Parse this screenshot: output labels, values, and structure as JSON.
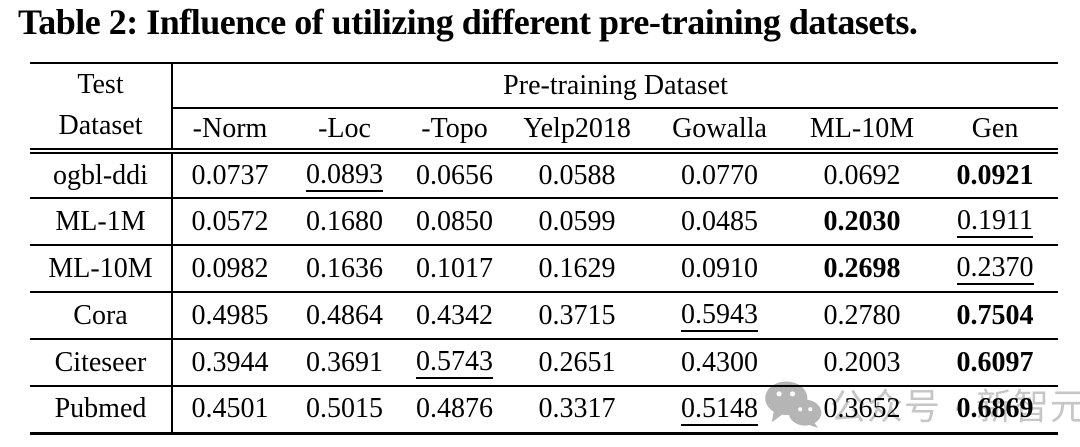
{
  "title": "Table 2: Influence of utilizing different pre-training datasets.",
  "table": {
    "row_header_line1": "Test",
    "row_header_line2": "Dataset",
    "group_header": "Pre-training Dataset",
    "columns": [
      "-Norm",
      "-Loc",
      "-Topo",
      "Yelp2018",
      "Gowalla",
      "ML-10M",
      "Gen"
    ],
    "rows": [
      {
        "label": "ogbl-ddi",
        "values": [
          "0.0737",
          "0.0893",
          "0.0656",
          "0.0588",
          "0.0770",
          "0.0692",
          "0.0921"
        ],
        "bold_col": 6,
        "underline_col": 1
      },
      {
        "label": "ML-1M",
        "values": [
          "0.0572",
          "0.1680",
          "0.0850",
          "0.0599",
          "0.0485",
          "0.2030",
          "0.1911"
        ],
        "bold_col": 5,
        "underline_col": 6
      },
      {
        "label": "ML-10M",
        "values": [
          "0.0982",
          "0.1636",
          "0.1017",
          "0.1629",
          "0.0910",
          "0.2698",
          "0.2370"
        ],
        "bold_col": 5,
        "underline_col": 6
      },
      {
        "label": "Cora",
        "values": [
          "0.4985",
          "0.4864",
          "0.4342",
          "0.3715",
          "0.5943",
          "0.2780",
          "0.7504"
        ],
        "bold_col": 6,
        "underline_col": 4
      },
      {
        "label": "Citeseer",
        "values": [
          "0.3944",
          "0.3691",
          "0.5743",
          "0.2651",
          "0.4300",
          "0.2003",
          "0.6097"
        ],
        "bold_col": 6,
        "underline_col": 2
      },
      {
        "label": "Pubmed",
        "values": [
          "0.4501",
          "0.5015",
          "0.4876",
          "0.3317",
          "0.5148",
          "0.3652",
          "0.6869"
        ],
        "bold_col": 6,
        "underline_col": 4
      }
    ]
  },
  "watermark": {
    "icon": "wechat-icon",
    "text": "公众号 · 新智元",
    "icon_color": "#a8a8a8",
    "text_color": "#c6c6c6"
  }
}
